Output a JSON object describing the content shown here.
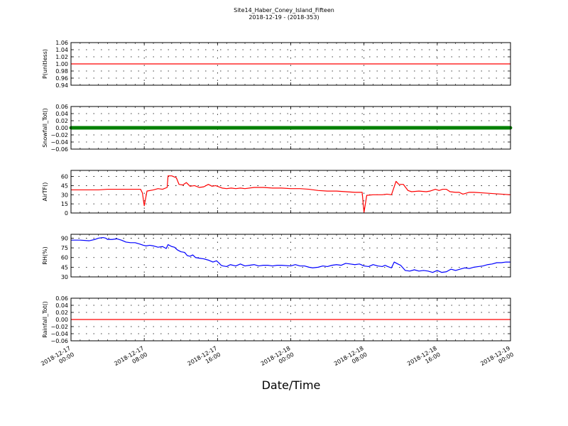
{
  "chart_data": {
    "type": "line",
    "title": "Site14_Haber_Coney_Island_Fifteen",
    "subtitle": "2018-12-19 - (2018-353)",
    "xlabel": "Date/Time",
    "x_range": [
      "2018-12-17 00:00",
      "2018-12-19 00:00"
    ],
    "x_ticks": [
      {
        "t": 0,
        "line1": "2018-12-17",
        "line2": "00:00"
      },
      {
        "t": 8,
        "line1": "2018-12-17",
        "line2": "08:00"
      },
      {
        "t": 16,
        "line1": "2018-12-17",
        "line2": "16:00"
      },
      {
        "t": 24,
        "line1": "2018-12-18",
        "line2": "00:00"
      },
      {
        "t": 32,
        "line1": "2018-12-18",
        "line2": "08:00"
      },
      {
        "t": 40,
        "line1": "2018-12-18",
        "line2": "16:00"
      },
      {
        "t": 48,
        "line1": "2018-12-19",
        "line2": "00:00"
      }
    ],
    "grid": true,
    "panels": [
      {
        "ylabel": "P(unitless)",
        "ylim": [
          0.94,
          1.06
        ],
        "yticks": [
          "0.94",
          "0.96",
          "0.98",
          "1.00",
          "1.02",
          "1.04",
          "1.06"
        ],
        "color": "#ff0000",
        "style": "line",
        "points": [
          [
            0,
            1.0
          ],
          [
            48,
            1.0
          ]
        ]
      },
      {
        "ylabel": "Snowfall_Tot()",
        "ylim": [
          -0.06,
          0.06
        ],
        "yticks": [
          "−0.06",
          "−0.04",
          "−0.02",
          "0.00",
          "0.02",
          "0.04",
          "0.06"
        ],
        "color": "#008000",
        "style": "markers",
        "points": [
          [
            0,
            0.0
          ],
          [
            48,
            0.0
          ]
        ]
      },
      {
        "ylabel": "AirTF()",
        "ylim": [
          0,
          70
        ],
        "yticks": [
          "0",
          "15",
          "30",
          "45",
          "60"
        ],
        "color": "#ff0000",
        "style": "line",
        "points": [
          [
            0,
            38
          ],
          [
            2,
            38
          ],
          [
            3,
            38
          ],
          [
            4,
            39
          ],
          [
            5,
            39
          ],
          [
            6,
            39
          ],
          [
            7,
            39
          ],
          [
            7.6,
            39
          ],
          [
            7.8,
            33
          ],
          [
            8,
            12
          ],
          [
            8.3,
            36
          ],
          [
            9,
            38
          ],
          [
            9.5,
            40
          ],
          [
            10,
            39
          ],
          [
            10.5,
            42
          ],
          [
            10.6,
            61
          ],
          [
            11,
            61
          ],
          [
            11.5,
            58
          ],
          [
            11.8,
            47
          ],
          [
            12.2,
            46
          ],
          [
            12.6,
            50
          ],
          [
            13,
            44
          ],
          [
            13.5,
            45
          ],
          [
            14,
            42
          ],
          [
            14.5,
            43
          ],
          [
            15,
            47
          ],
          [
            15.4,
            44
          ],
          [
            15.8,
            45
          ],
          [
            16.5,
            41
          ],
          [
            17,
            40
          ],
          [
            17.5,
            41
          ],
          [
            18,
            40
          ],
          [
            18.5,
            41
          ],
          [
            19,
            40
          ],
          [
            20,
            42
          ],
          [
            21,
            42
          ],
          [
            22,
            41
          ],
          [
            23,
            41
          ],
          [
            24,
            40
          ],
          [
            25,
            40
          ],
          [
            26,
            39
          ],
          [
            27,
            37
          ],
          [
            28,
            36
          ],
          [
            29,
            36
          ],
          [
            30,
            35
          ],
          [
            31,
            34
          ],
          [
            31.6,
            34
          ],
          [
            31.8,
            34
          ],
          [
            32,
            1
          ],
          [
            32.3,
            29
          ],
          [
            33,
            30
          ],
          [
            33.5,
            30
          ],
          [
            34,
            30
          ],
          [
            34.5,
            31
          ],
          [
            35,
            30
          ],
          [
            35.5,
            52
          ],
          [
            35.8,
            47
          ],
          [
            36.3,
            47
          ],
          [
            36.8,
            37
          ],
          [
            37.2,
            35
          ],
          [
            38,
            36
          ],
          [
            38.8,
            35
          ],
          [
            39.2,
            36
          ],
          [
            39.8,
            39
          ],
          [
            40.2,
            37
          ],
          [
            40.6,
            39
          ],
          [
            41,
            39
          ],
          [
            41.4,
            35
          ],
          [
            42,
            34
          ],
          [
            42.4,
            34
          ],
          [
            42.8,
            31
          ],
          [
            43.5,
            34
          ],
          [
            44,
            34
          ],
          [
            45,
            33
          ],
          [
            46,
            32
          ],
          [
            47,
            31
          ],
          [
            48,
            30
          ]
        ]
      },
      {
        "ylabel": "RH(%)",
        "ylim": [
          30,
          96
        ],
        "yticks": [
          "30",
          "45",
          "60",
          "75",
          "90"
        ],
        "color": "#0000ff",
        "style": "line",
        "points": [
          [
            0,
            87
          ],
          [
            1,
            87
          ],
          [
            2,
            86
          ],
          [
            2.6,
            88
          ],
          [
            3,
            90
          ],
          [
            3.5,
            91
          ],
          [
            3.8,
            90
          ],
          [
            4,
            88
          ],
          [
            4.5,
            88
          ],
          [
            5,
            89
          ],
          [
            5.5,
            87
          ],
          [
            6,
            84
          ],
          [
            6.5,
            83
          ],
          [
            7,
            83
          ],
          [
            7.5,
            81
          ],
          [
            7.9,
            79
          ],
          [
            8.2,
            78
          ],
          [
            8.6,
            79
          ],
          [
            9,
            78
          ],
          [
            9.5,
            76
          ],
          [
            10,
            77
          ],
          [
            10.4,
            74
          ],
          [
            10.6,
            80
          ],
          [
            11,
            77
          ],
          [
            11.3,
            76
          ],
          [
            11.6,
            72
          ],
          [
            12,
            69
          ],
          [
            12.4,
            68
          ],
          [
            12.7,
            63
          ],
          [
            13,
            62
          ],
          [
            13.3,
            64
          ],
          [
            13.6,
            60
          ],
          [
            14,
            59
          ],
          [
            14.5,
            58
          ],
          [
            15,
            56
          ],
          [
            15.5,
            53
          ],
          [
            15.9,
            55
          ],
          [
            16.2,
            51
          ],
          [
            16.4,
            48
          ],
          [
            16.6,
            47
          ],
          [
            17,
            46
          ],
          [
            17.4,
            49
          ],
          [
            18,
            47
          ],
          [
            18.5,
            50
          ],
          [
            19,
            47
          ],
          [
            19.5,
            48
          ],
          [
            20,
            49
          ],
          [
            20.5,
            47
          ],
          [
            21,
            48
          ],
          [
            21.5,
            48
          ],
          [
            22,
            47
          ],
          [
            22.5,
            48
          ],
          [
            23,
            48
          ],
          [
            24,
            47
          ],
          [
            24.5,
            49
          ],
          [
            25,
            47
          ],
          [
            25.5,
            47
          ],
          [
            26,
            45
          ],
          [
            26.4,
            44
          ],
          [
            27,
            45
          ],
          [
            27.5,
            47
          ],
          [
            28,
            46
          ],
          [
            28.5,
            48
          ],
          [
            29,
            49
          ],
          [
            29.5,
            48
          ],
          [
            30,
            51
          ],
          [
            30.5,
            50
          ],
          [
            31,
            49
          ],
          [
            31.5,
            50
          ],
          [
            32,
            47
          ],
          [
            32.5,
            46
          ],
          [
            33,
            49
          ],
          [
            33.5,
            47
          ],
          [
            34,
            46
          ],
          [
            34.3,
            48
          ],
          [
            34.6,
            46
          ],
          [
            35,
            44
          ],
          [
            35.3,
            53
          ],
          [
            35.7,
            50
          ],
          [
            36,
            48
          ],
          [
            36.5,
            40
          ],
          [
            37,
            39
          ],
          [
            37.5,
            41
          ],
          [
            38,
            39
          ],
          [
            38.5,
            40
          ],
          [
            39,
            39
          ],
          [
            39.5,
            37
          ],
          [
            40,
            40
          ],
          [
            40.5,
            37
          ],
          [
            41,
            38
          ],
          [
            41.5,
            42
          ],
          [
            42,
            40
          ],
          [
            42.5,
            42
          ],
          [
            43,
            44
          ],
          [
            43.5,
            43
          ],
          [
            44,
            45
          ],
          [
            44.5,
            46
          ],
          [
            45,
            47
          ],
          [
            45.5,
            49
          ],
          [
            46,
            50
          ],
          [
            46.5,
            52
          ],
          [
            47,
            52
          ],
          [
            47.5,
            53
          ],
          [
            48,
            53
          ]
        ]
      },
      {
        "ylabel": "Rainfall_Tot()",
        "ylim": [
          -0.06,
          0.06
        ],
        "yticks": [
          "−0.06",
          "−0.04",
          "−0.02",
          "0.00",
          "0.02",
          "0.04",
          "0.06"
        ],
        "color": "#ff0000",
        "style": "line",
        "points": [
          [
            0,
            0.0
          ],
          [
            48,
            0.0
          ]
        ]
      }
    ]
  }
}
